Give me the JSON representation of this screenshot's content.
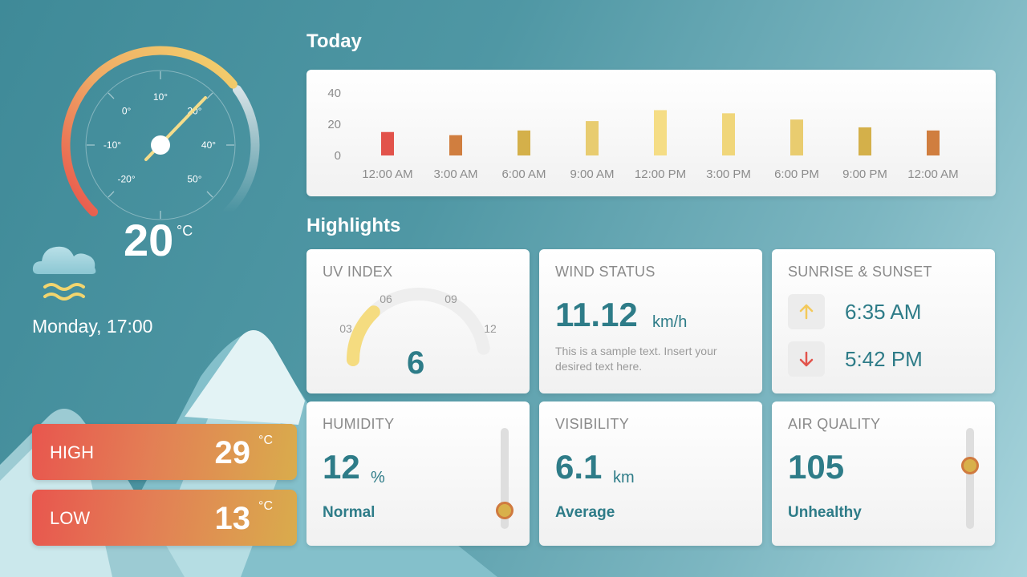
{
  "current": {
    "temperature": "20",
    "unit": "°C",
    "day_time": "Monday, 17:00",
    "gauge_labels": [
      "-20°",
      "-10°",
      "0°",
      "10°",
      "20°",
      "40°",
      "50°"
    ]
  },
  "high": {
    "label": "HIGH",
    "value": "29",
    "unit": "°C"
  },
  "low": {
    "label": "LOW",
    "value": "13",
    "unit": "°C"
  },
  "today": {
    "title": "Today",
    "chart_data": {
      "type": "bar",
      "categories": [
        "12:00 AM",
        "3:00 AM",
        "6:00 AM",
        "9:00 AM",
        "12:00 PM",
        "3:00 PM",
        "6:00 PM",
        "9:00 PM",
        "12:00 AM"
      ],
      "values": [
        15,
        13,
        16,
        22,
        29,
        27,
        23,
        18,
        16
      ],
      "colors": [
        "#e2534b",
        "#d07e3f",
        "#d4b04a",
        "#e8cc70",
        "#f5dd85",
        "#f0d67a",
        "#e9cc6f",
        "#d4b04a",
        "#d07e3f"
      ],
      "ylim": [
        0,
        40
      ],
      "yticks": [
        0,
        20,
        40
      ],
      "grid": false
    }
  },
  "highlights": {
    "title": "Highlights",
    "uv": {
      "title": "UV INDEX",
      "value": "6",
      "level": 6,
      "max": 12,
      "ticks": [
        "03",
        "06",
        "09",
        "12"
      ]
    },
    "wind": {
      "title": "WIND STATUS",
      "value": "11.12",
      "unit": "km/h",
      "note": "This is a sample text. Insert your desired text here."
    },
    "sun": {
      "title": "SUNRISE & SUNSET",
      "sunrise": "6:35 AM",
      "sunset": "5:42 PM",
      "sunrise_icon": "arrow-up-icon",
      "sunset_icon": "arrow-down-icon"
    },
    "humidity": {
      "title": "HUMIDITY",
      "value": "12",
      "unit": "%",
      "status": "Normal",
      "level": 0.12
    },
    "visibility": {
      "title": "VISIBILITY",
      "value": "6.1",
      "unit": "km",
      "status": "Average"
    },
    "air": {
      "title": "AIR QUALITY",
      "value": "105",
      "status": "Unhealthy",
      "level": 0.65
    }
  },
  "colors": {
    "accent": "#2e7c88",
    "sun_up": "#f3c95a",
    "sun_down": "#e2534b"
  }
}
